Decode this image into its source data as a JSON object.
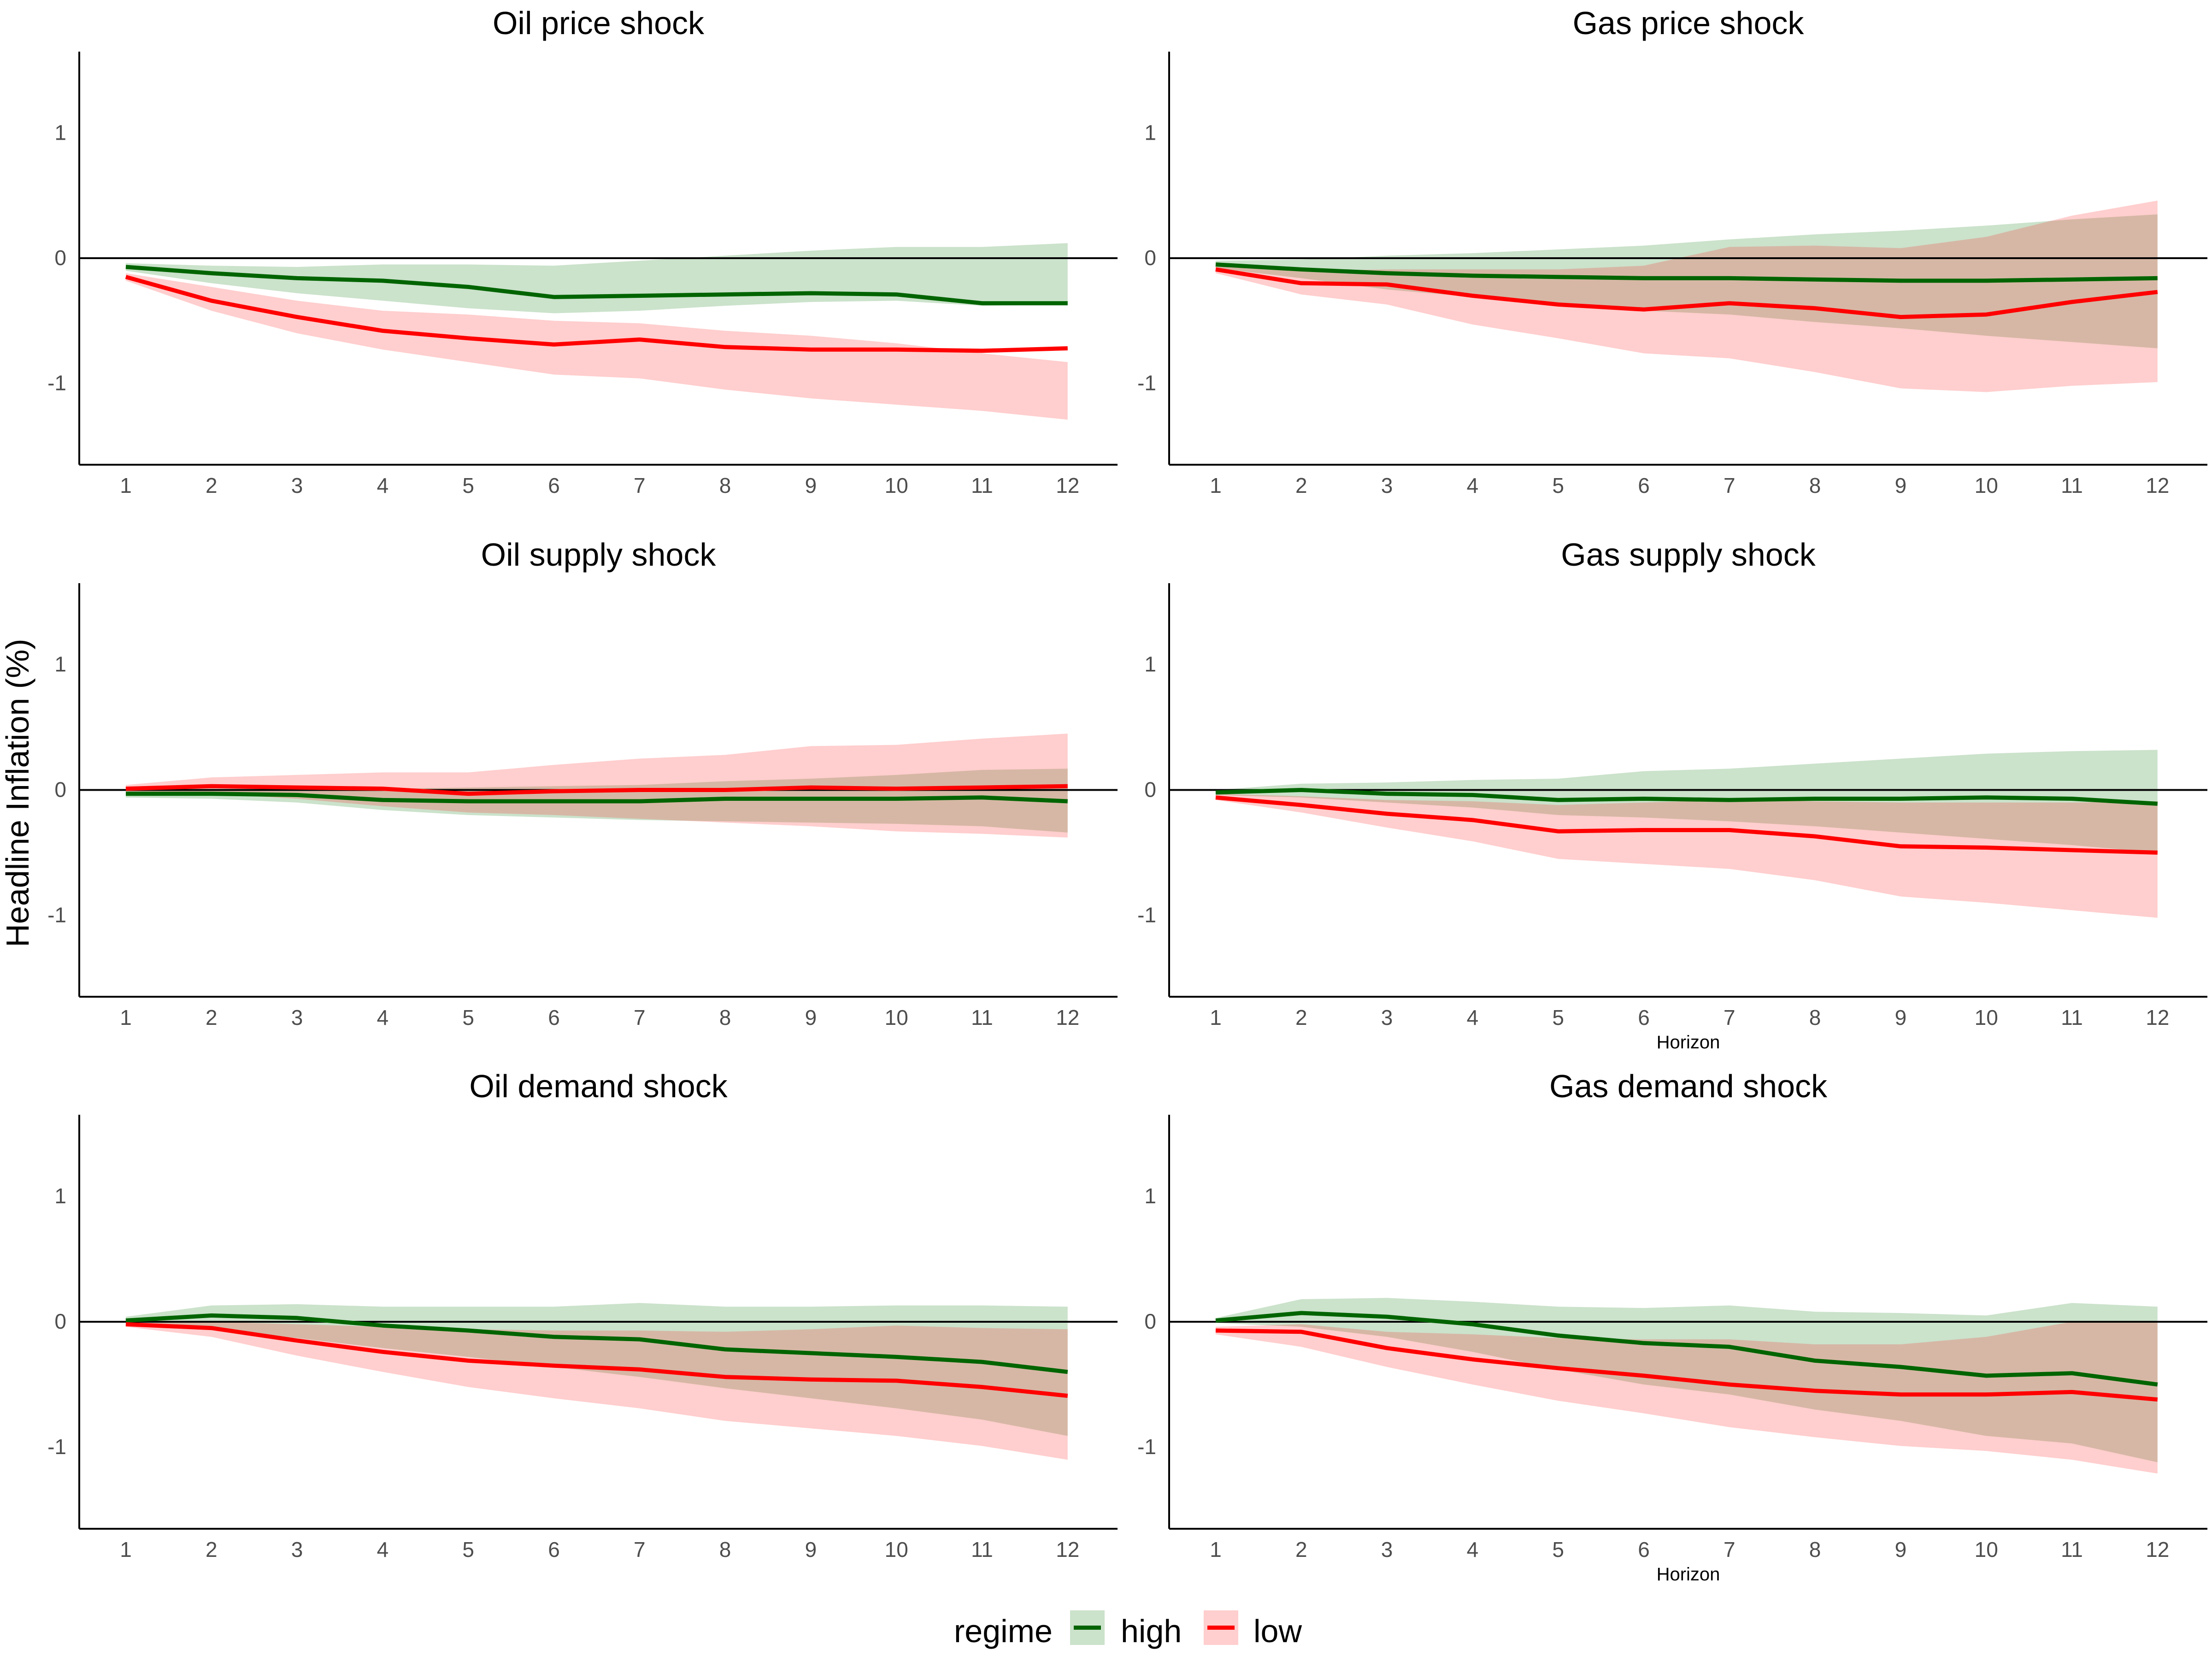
{
  "y_axis_label": "Headline Inflation (%)",
  "legend": {
    "title": "regime",
    "items": [
      {
        "key": "high",
        "label": "high",
        "line_color": "#006400",
        "band_color": "#2e8b2e",
        "band_opacity": 0.25
      },
      {
        "key": "low",
        "label": "low",
        "line_color": "#ff0000",
        "band_color": "#ff2020",
        "band_opacity": 0.22
      }
    ]
  },
  "chart_data": [
    {
      "type": "line",
      "title": "Oil price shock",
      "xlabel": "",
      "x": [
        1,
        2,
        3,
        4,
        5,
        6,
        7,
        8,
        9,
        10,
        11,
        12
      ],
      "y_ticks": [
        -1,
        0,
        1
      ],
      "ylim": [
        -1.65,
        1.65
      ],
      "series": [
        {
          "name": "high",
          "values": [
            -0.07,
            -0.12,
            -0.16,
            -0.18,
            -0.23,
            -0.31,
            -0.3,
            -0.29,
            -0.28,
            -0.29,
            -0.36,
            -0.36
          ],
          "lower": [
            -0.1,
            -0.2,
            -0.28,
            -0.34,
            -0.4,
            -0.44,
            -0.42,
            -0.38,
            -0.35,
            -0.34,
            -0.38,
            -0.37
          ],
          "upper": [
            -0.04,
            -0.06,
            -0.07,
            -0.05,
            -0.05,
            -0.06,
            -0.02,
            0.02,
            0.06,
            0.09,
            0.09,
            0.12
          ]
        },
        {
          "name": "low",
          "values": [
            -0.15,
            -0.34,
            -0.47,
            -0.58,
            -0.64,
            -0.69,
            -0.65,
            -0.71,
            -0.73,
            -0.73,
            -0.74,
            -0.72
          ],
          "lower": [
            -0.18,
            -0.42,
            -0.6,
            -0.73,
            -0.83,
            -0.93,
            -0.96,
            -1.05,
            -1.12,
            -1.17,
            -1.22,
            -1.29
          ],
          "upper": [
            -0.12,
            -0.23,
            -0.34,
            -0.42,
            -0.45,
            -0.5,
            -0.52,
            -0.58,
            -0.62,
            -0.68,
            -0.76,
            -0.83
          ]
        }
      ]
    },
    {
      "type": "line",
      "title": "Gas price shock",
      "xlabel": "",
      "x": [
        1,
        2,
        3,
        4,
        5,
        6,
        7,
        8,
        9,
        10,
        11,
        12
      ],
      "y_ticks": [
        -1,
        0,
        1
      ],
      "ylim": [
        -1.65,
        1.65
      ],
      "series": [
        {
          "name": "high",
          "values": [
            -0.05,
            -0.09,
            -0.12,
            -0.14,
            -0.15,
            -0.16,
            -0.16,
            -0.17,
            -0.18,
            -0.18,
            -0.17,
            -0.16
          ],
          "lower": [
            -0.08,
            -0.16,
            -0.25,
            -0.31,
            -0.37,
            -0.42,
            -0.45,
            -0.51,
            -0.56,
            -0.62,
            -0.67,
            -0.72
          ],
          "upper": [
            -0.02,
            -0.01,
            0.02,
            0.04,
            0.07,
            0.1,
            0.15,
            0.19,
            0.22,
            0.26,
            0.31,
            0.35
          ]
        },
        {
          "name": "low",
          "values": [
            -0.09,
            -0.2,
            -0.21,
            -0.3,
            -0.37,
            -0.41,
            -0.36,
            -0.4,
            -0.47,
            -0.45,
            -0.35,
            -0.27
          ],
          "lower": [
            -0.12,
            -0.29,
            -0.37,
            -0.53,
            -0.64,
            -0.76,
            -0.8,
            -0.91,
            -1.04,
            -1.07,
            -1.02,
            -0.99
          ],
          "upper": [
            -0.06,
            -0.1,
            -0.09,
            -0.09,
            -0.09,
            -0.06,
            0.09,
            0.1,
            0.08,
            0.17,
            0.34,
            0.46
          ]
        }
      ]
    },
    {
      "type": "line",
      "title": "Oil supply shock",
      "xlabel": "",
      "x": [
        1,
        2,
        3,
        4,
        5,
        6,
        7,
        8,
        9,
        10,
        11,
        12
      ],
      "y_ticks": [
        -1,
        0,
        1
      ],
      "ylim": [
        -1.65,
        1.65
      ],
      "series": [
        {
          "name": "high",
          "values": [
            -0.03,
            -0.03,
            -0.04,
            -0.08,
            -0.09,
            -0.09,
            -0.09,
            -0.07,
            -0.07,
            -0.07,
            -0.06,
            -0.09
          ],
          "lower": [
            -0.06,
            -0.07,
            -0.1,
            -0.16,
            -0.2,
            -0.22,
            -0.24,
            -0.25,
            -0.26,
            -0.27,
            -0.29,
            -0.34
          ],
          "upper": [
            0.0,
            0.01,
            0.01,
            0.01,
            0.02,
            0.03,
            0.04,
            0.07,
            0.09,
            0.12,
            0.16,
            0.17
          ]
        },
        {
          "name": "low",
          "values": [
            0.01,
            0.03,
            0.02,
            0.01,
            -0.03,
            -0.01,
            0.0,
            0.0,
            0.02,
            0.01,
            0.02,
            0.03
          ],
          "lower": [
            -0.02,
            -0.03,
            -0.07,
            -0.13,
            -0.18,
            -0.2,
            -0.23,
            -0.26,
            -0.29,
            -0.33,
            -0.35,
            -0.38
          ],
          "upper": [
            0.04,
            0.1,
            0.12,
            0.14,
            0.14,
            0.2,
            0.25,
            0.28,
            0.35,
            0.36,
            0.41,
            0.45
          ]
        }
      ]
    },
    {
      "type": "line",
      "title": "Gas supply shock",
      "xlabel": "Horizon",
      "x": [
        1,
        2,
        3,
        4,
        5,
        6,
        7,
        8,
        9,
        10,
        11,
        12
      ],
      "y_ticks": [
        -1,
        0,
        1
      ],
      "ylim": [
        -1.65,
        1.65
      ],
      "series": [
        {
          "name": "high",
          "values": [
            -0.02,
            0.0,
            -0.03,
            -0.04,
            -0.08,
            -0.07,
            -0.08,
            -0.07,
            -0.07,
            -0.06,
            -0.07,
            -0.11
          ],
          "lower": [
            -0.04,
            -0.06,
            -0.1,
            -0.14,
            -0.2,
            -0.22,
            -0.25,
            -0.29,
            -0.34,
            -0.39,
            -0.44,
            -0.5
          ],
          "upper": [
            0.0,
            0.05,
            0.06,
            0.08,
            0.09,
            0.15,
            0.17,
            0.21,
            0.25,
            0.29,
            0.31,
            0.32
          ]
        },
        {
          "name": "low",
          "values": [
            -0.06,
            -0.12,
            -0.19,
            -0.24,
            -0.33,
            -0.32,
            -0.32,
            -0.37,
            -0.45,
            -0.46,
            -0.48,
            -0.5
          ],
          "lower": [
            -0.08,
            -0.18,
            -0.3,
            -0.41,
            -0.55,
            -0.59,
            -0.63,
            -0.72,
            -0.85,
            -0.9,
            -0.96,
            -1.02
          ],
          "upper": [
            -0.03,
            -0.05,
            -0.08,
            -0.09,
            -0.12,
            -0.1,
            -0.08,
            -0.09,
            -0.1,
            -0.1,
            -0.1,
            -0.09
          ]
        }
      ]
    },
    {
      "type": "line",
      "title": "Oil demand shock",
      "xlabel": "",
      "x": [
        1,
        2,
        3,
        4,
        5,
        6,
        7,
        8,
        9,
        10,
        11,
        12
      ],
      "y_ticks": [
        -1,
        0,
        1
      ],
      "ylim": [
        -1.65,
        1.65
      ],
      "series": [
        {
          "name": "high",
          "values": [
            0.01,
            0.05,
            0.03,
            -0.03,
            -0.07,
            -0.12,
            -0.14,
            -0.22,
            -0.25,
            -0.28,
            -0.32,
            -0.4
          ],
          "lower": [
            -0.02,
            -0.06,
            -0.13,
            -0.21,
            -0.28,
            -0.36,
            -0.44,
            -0.53,
            -0.61,
            -0.69,
            -0.78,
            -0.91
          ],
          "upper": [
            0.04,
            0.13,
            0.14,
            0.12,
            0.12,
            0.12,
            0.15,
            0.12,
            0.12,
            0.13,
            0.13,
            0.12
          ]
        },
        {
          "name": "low",
          "values": [
            -0.02,
            -0.05,
            -0.15,
            -0.24,
            -0.31,
            -0.35,
            -0.38,
            -0.44,
            -0.46,
            -0.47,
            -0.52,
            -0.59
          ],
          "lower": [
            -0.04,
            -0.12,
            -0.27,
            -0.4,
            -0.52,
            -0.61,
            -0.69,
            -0.79,
            -0.85,
            -0.91,
            -0.99,
            -1.1
          ],
          "upper": [
            0.0,
            0.0,
            -0.02,
            -0.04,
            -0.06,
            -0.07,
            -0.07,
            -0.08,
            -0.06,
            -0.03,
            -0.05,
            -0.06
          ]
        }
      ]
    },
    {
      "type": "line",
      "title": "Gas demand shock",
      "xlabel": "Horizon",
      "x": [
        1,
        2,
        3,
        4,
        5,
        6,
        7,
        8,
        9,
        10,
        11,
        12
      ],
      "y_ticks": [
        -1,
        0,
        1
      ],
      "ylim": [
        -1.65,
        1.65
      ],
      "series": [
        {
          "name": "high",
          "values": [
            0.01,
            0.07,
            0.04,
            -0.02,
            -0.11,
            -0.17,
            -0.2,
            -0.31,
            -0.36,
            -0.43,
            -0.41,
            -0.5
          ],
          "lower": [
            -0.01,
            -0.04,
            -0.12,
            -0.24,
            -0.38,
            -0.5,
            -0.58,
            -0.7,
            -0.79,
            -0.91,
            -0.97,
            -1.12
          ],
          "upper": [
            0.03,
            0.18,
            0.19,
            0.16,
            0.12,
            0.11,
            0.13,
            0.08,
            0.07,
            0.05,
            0.15,
            0.12
          ]
        },
        {
          "name": "low",
          "values": [
            -0.07,
            -0.08,
            -0.21,
            -0.3,
            -0.37,
            -0.43,
            -0.5,
            -0.55,
            -0.58,
            -0.58,
            -0.56,
            -0.62
          ],
          "lower": [
            -0.1,
            -0.2,
            -0.36,
            -0.5,
            -0.63,
            -0.73,
            -0.84,
            -0.92,
            -0.99,
            -1.03,
            -1.1,
            -1.21
          ],
          "upper": [
            -0.04,
            -0.02,
            -0.08,
            -0.1,
            -0.13,
            -0.14,
            -0.14,
            -0.18,
            -0.18,
            -0.12,
            0.0,
            0.0
          ]
        }
      ]
    }
  ]
}
